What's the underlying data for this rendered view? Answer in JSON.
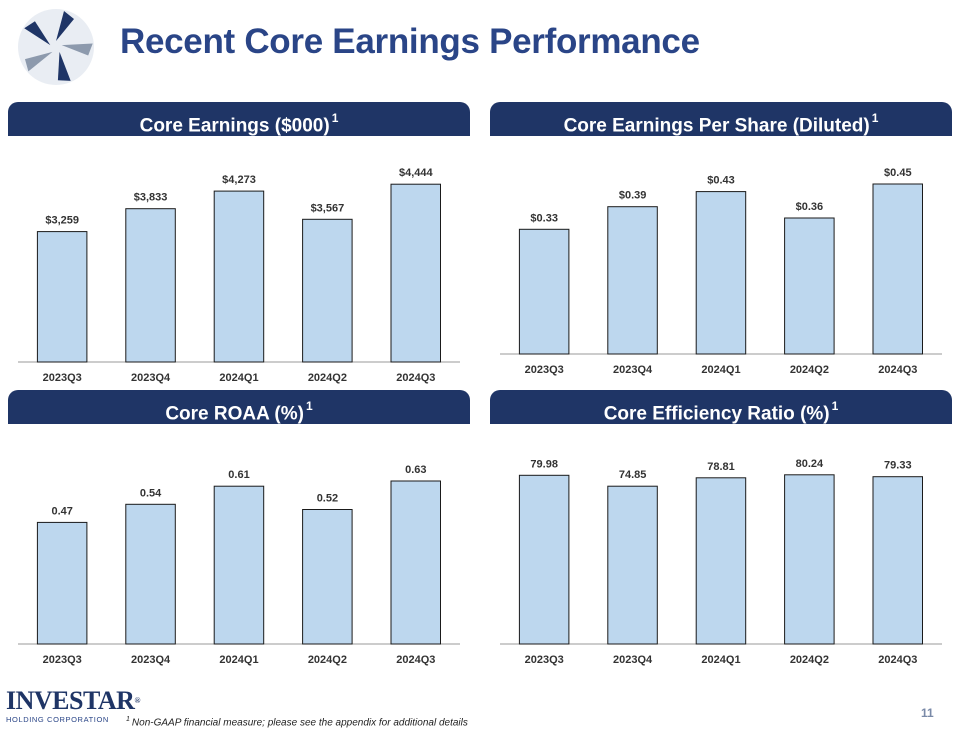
{
  "title": "Recent Core Earnings Performance",
  "brand": {
    "name": "INVESTAR",
    "registered": "®",
    "subtitle": "HOLDING CORPORATION"
  },
  "footnote": {
    "marker": "1",
    "text": "Non-GAAP financial measure; please see the appendix for additional details"
  },
  "page_number": "11",
  "colors": {
    "header": "#1f3566",
    "title": "#2a4587",
    "bar_fill": "#bdd7ee",
    "bar_stroke": "#1a1a1a"
  },
  "panels": [
    {
      "title": "Core Earnings ($000)",
      "marker": "1"
    },
    {
      "title": "Core Earnings Per Share (Diluted)",
      "marker": "1"
    },
    {
      "title": "Core ROAA (%)",
      "marker": "1"
    },
    {
      "title": "Core Efficiency Ratio (%)",
      "marker": "1"
    }
  ],
  "chart_data": [
    {
      "type": "bar",
      "title": "Core Earnings ($000)",
      "categories": [
        "2023Q3",
        "2023Q4",
        "2024Q1",
        "2024Q2",
        "2024Q3"
      ],
      "values": [
        3259,
        3833,
        4273,
        3567,
        4444
      ],
      "labels": [
        "$3,259",
        "$3,833",
        "$4,273",
        "$3,567",
        "$4,444"
      ],
      "ylim": [
        0,
        5300
      ],
      "grid": false
    },
    {
      "type": "bar",
      "title": "Core Earnings Per Share (Diluted)",
      "categories": [
        "2023Q3",
        "2023Q4",
        "2024Q1",
        "2024Q2",
        "2024Q3"
      ],
      "values": [
        0.33,
        0.39,
        0.43,
        0.36,
        0.45
      ],
      "labels": [
        "$0.33",
        "$0.39",
        "$0.43",
        "$0.36",
        "$0.45"
      ],
      "ylim": [
        0,
        0.54
      ],
      "grid": false
    },
    {
      "type": "bar",
      "title": "Core ROAA (%)",
      "categories": [
        "2023Q3",
        "2023Q4",
        "2024Q1",
        "2024Q2",
        "2024Q3"
      ],
      "values": [
        0.47,
        0.54,
        0.61,
        0.52,
        0.63
      ],
      "labels": [
        "0.47",
        "0.54",
        "0.61",
        "0.52",
        "0.63"
      ],
      "ylim": [
        0,
        0.75
      ],
      "grid": false
    },
    {
      "type": "bar",
      "title": "Core Efficiency Ratio (%)",
      "categories": [
        "2023Q3",
        "2023Q4",
        "2024Q1",
        "2024Q2",
        "2024Q3"
      ],
      "values": [
        79.98,
        74.85,
        78.81,
        80.24,
        79.33
      ],
      "labels": [
        "79.98",
        "74.85",
        "78.81",
        "80.24",
        "79.33"
      ],
      "ylim": [
        0,
        92
      ],
      "grid": false
    }
  ]
}
